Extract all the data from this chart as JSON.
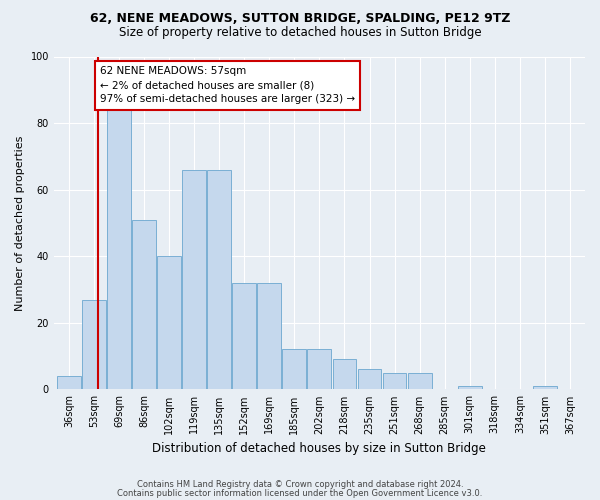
{
  "title1": "62, NENE MEADOWS, SUTTON BRIDGE, SPALDING, PE12 9TZ",
  "title2": "Size of property relative to detached houses in Sutton Bridge",
  "xlabel": "Distribution of detached houses by size in Sutton Bridge",
  "ylabel": "Number of detached properties",
  "categories": [
    "36sqm",
    "53sqm",
    "69sqm",
    "86sqm",
    "102sqm",
    "119sqm",
    "135sqm",
    "152sqm",
    "169sqm",
    "185sqm",
    "202sqm",
    "218sqm",
    "235sqm",
    "251sqm",
    "268sqm",
    "285sqm",
    "301sqm",
    "318sqm",
    "334sqm",
    "351sqm",
    "367sqm"
  ],
  "values": [
    4,
    27,
    85,
    51,
    40,
    66,
    66,
    32,
    32,
    12,
    12,
    9,
    6,
    5,
    5,
    0,
    1,
    0,
    0,
    1,
    0
  ],
  "bar_color": "#c5d8ed",
  "bar_edge_color": "#7aafd4",
  "annotation_text": "62 NENE MEADOWS: 57sqm\n← 2% of detached houses are smaller (8)\n97% of semi-detached houses are larger (323) →",
  "annotation_box_color": "white",
  "annotation_box_edge_color": "#cc0000",
  "vline_color": "#cc0000",
  "vline_pos": 1.18,
  "ylim": [
    0,
    100
  ],
  "yticks": [
    0,
    20,
    40,
    60,
    80,
    100
  ],
  "footer1": "Contains HM Land Registry data © Crown copyright and database right 2024.",
  "footer2": "Contains public sector information licensed under the Open Government Licence v3.0.",
  "bg_color": "#e8eef4",
  "plot_bg_color": "#e8eef4",
  "grid_color": "#ffffff",
  "title1_fontsize": 9,
  "title2_fontsize": 8.5,
  "ylabel_fontsize": 8,
  "xlabel_fontsize": 8.5,
  "tick_fontsize": 7,
  "footer_fontsize": 6,
  "annot_fontsize": 7.5
}
